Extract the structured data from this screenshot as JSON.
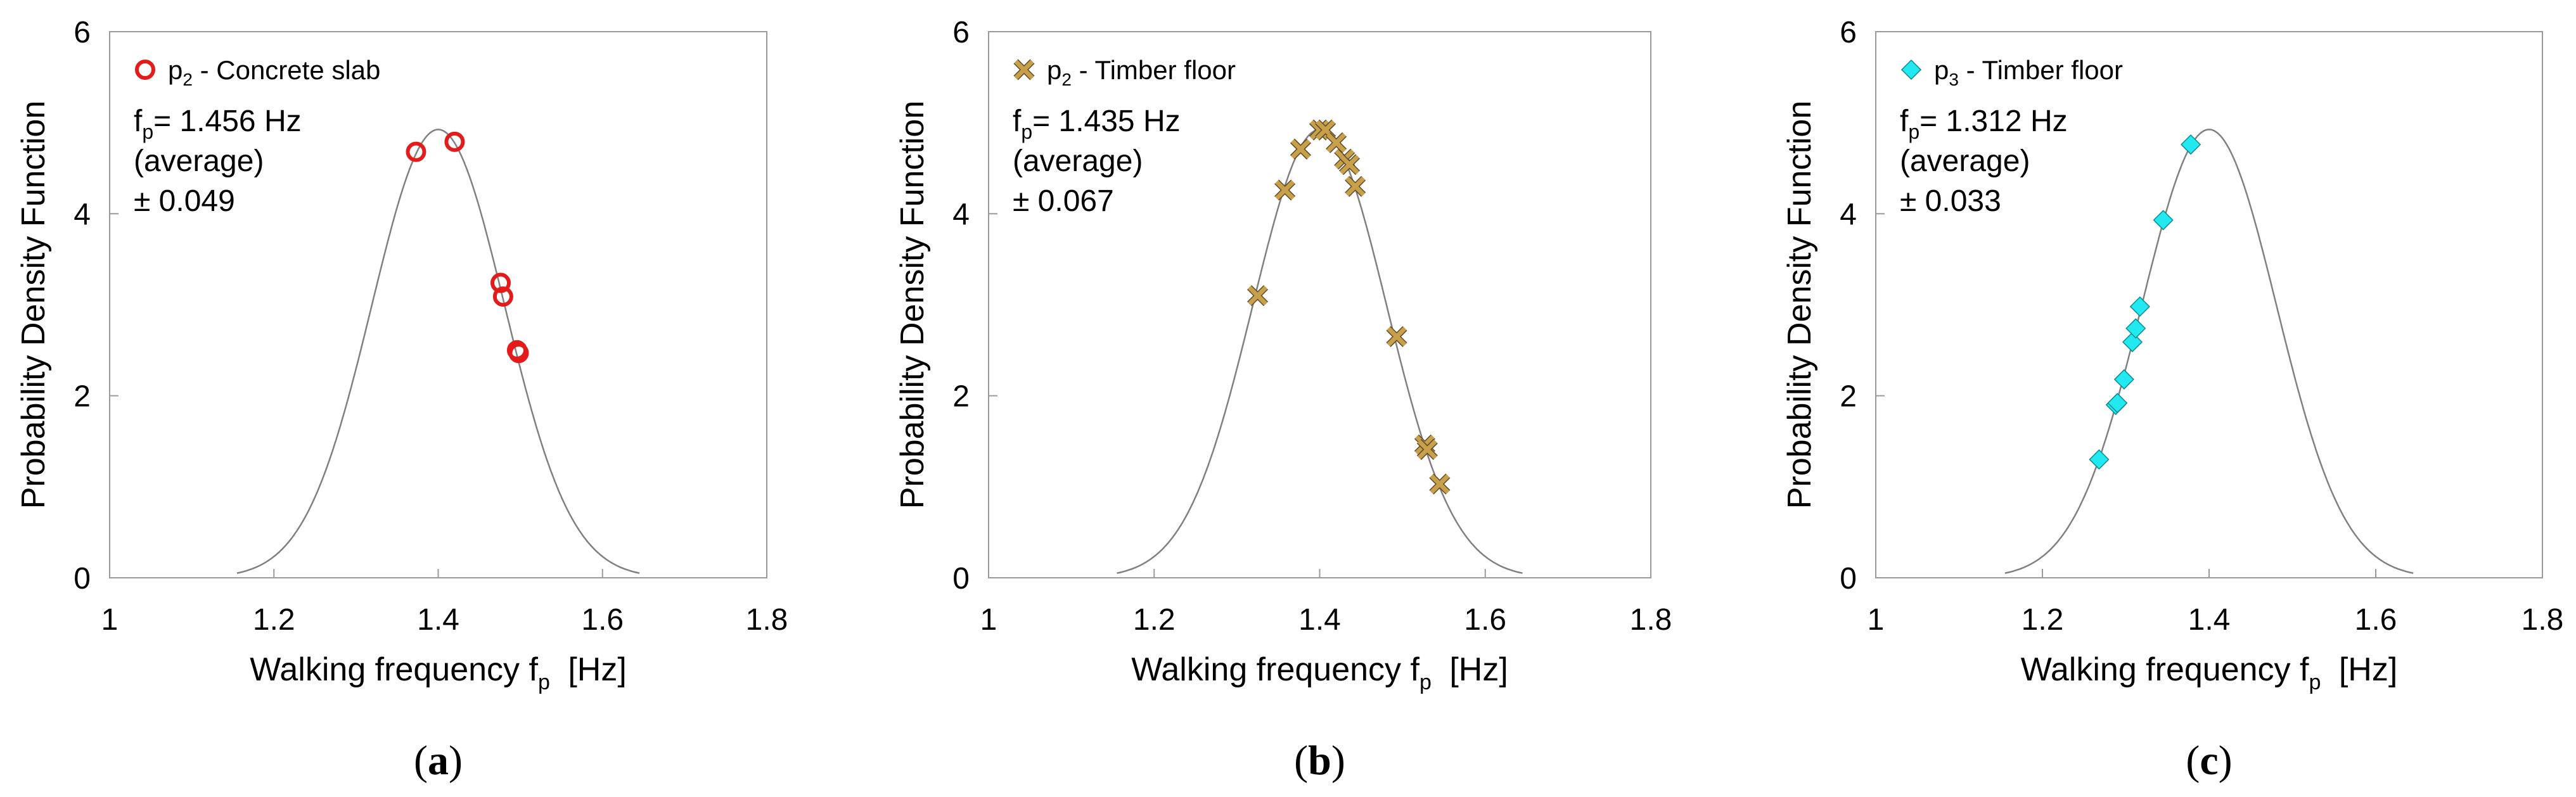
{
  "chart_data": [
    {
      "type": "scatter",
      "panel_label": "(a)",
      "panel_letter": "a",
      "xlabel": "Walking frequency f",
      "xlabel_sub": "p",
      "xlabel_unit": "[Hz]",
      "ylabel": "Probability Density Function",
      "xlim": [
        1.0,
        1.8
      ],
      "ylim": [
        0,
        6
      ],
      "xticks": [
        1.0,
        1.2,
        1.4,
        1.6,
        1.8
      ],
      "xtick_labels": [
        "1",
        "1.2",
        "1.4",
        "1.6",
        "1.8"
      ],
      "yticks": [
        0,
        2,
        4,
        6
      ],
      "ytick_labels": [
        "0",
        "2",
        "4",
        "6"
      ],
      "legend": {
        "name": "p",
        "sub": "2",
        "text": " - Concrete slab",
        "marker": "circle",
        "color": "#e31b1b",
        "placement": "top-left"
      },
      "annotation": {
        "main": "f",
        "sub": "p",
        "value": "= 1.456 Hz",
        "line2": "(average)",
        "line3": "± 0.049"
      },
      "curve": {
        "mean": 1.4,
        "std": 0.081,
        "x_range": [
          1.155,
          1.645
        ],
        "color": "#808080"
      },
      "series": [
        {
          "name": "p2 - Concrete slab",
          "x": [
            1.373,
            1.42,
            1.476,
            1.479,
            1.496,
            1.498
          ],
          "y": [
            4.68,
            4.79,
            3.24,
            3.09,
            2.5,
            2.47
          ]
        }
      ]
    },
    {
      "type": "scatter",
      "panel_label": "(b)",
      "panel_letter": "b",
      "xlabel": "Walking frequency f",
      "xlabel_sub": "p",
      "xlabel_unit": "[Hz]",
      "ylabel": "Probability Density Function",
      "xlim": [
        1.0,
        1.8
      ],
      "ylim": [
        0,
        6
      ],
      "xticks": [
        1.0,
        1.2,
        1.4,
        1.6,
        1.8
      ],
      "xtick_labels": [
        "1",
        "1.2",
        "1.4",
        "1.6",
        "1.8"
      ],
      "yticks": [
        0,
        2,
        4,
        6
      ],
      "ytick_labels": [
        "0",
        "2",
        "4",
        "6"
      ],
      "legend": {
        "name": "p",
        "sub": "2",
        "text": " - Timber floor",
        "marker": "x",
        "color": "#c9a04a",
        "placement": "top-left"
      },
      "annotation": {
        "main": "f",
        "sub": "p",
        "value": "= 1.435 Hz",
        "line2": "(average)",
        "line3": "± 0.067"
      },
      "curve": {
        "mean": 1.4,
        "std": 0.081,
        "x_range": [
          1.155,
          1.645
        ],
        "color": "#808080"
      },
      "series": [
        {
          "name": "p2 - Timber floor",
          "x": [
            1.325,
            1.358,
            1.377,
            1.4,
            1.407,
            1.42,
            1.43,
            1.436,
            1.443,
            1.493,
            1.527,
            1.53,
            1.545
          ],
          "y": [
            3.1,
            4.26,
            4.71,
            4.92,
            4.92,
            4.78,
            4.6,
            4.54,
            4.3,
            2.65,
            1.46,
            1.41,
            1.03
          ]
        }
      ]
    },
    {
      "type": "scatter",
      "panel_label": "(c)",
      "panel_letter": "c",
      "xlabel": "Walking frequency f",
      "xlabel_sub": "p",
      "xlabel_unit": "[Hz]",
      "ylabel": "Probability Density Function",
      "xlim": [
        1.0,
        1.8
      ],
      "ylim": [
        0,
        6
      ],
      "xticks": [
        1.0,
        1.2,
        1.4,
        1.6,
        1.8
      ],
      "xtick_labels": [
        "1",
        "1.2",
        "1.4",
        "1.6",
        "1.8"
      ],
      "yticks": [
        0,
        2,
        4,
        6
      ],
      "ytick_labels": [
        "0",
        "2",
        "4",
        "6"
      ],
      "legend": {
        "name": "p",
        "sub": "3",
        "text": " - Timber floor",
        "marker": "diamond",
        "color": "#22e8f0",
        "placement": "top-left"
      },
      "annotation": {
        "main": "f",
        "sub": "p",
        "value": "= 1.312 Hz",
        "line2": "(average)",
        "line3": "± 0.033"
      },
      "curve": {
        "mean": 1.4,
        "std": 0.081,
        "x_range": [
          1.155,
          1.645
        ],
        "color": "#808080"
      },
      "series": [
        {
          "name": "p3 - Timber floor",
          "x": [
            1.268,
            1.288,
            1.29,
            1.298,
            1.308,
            1.312,
            1.317,
            1.345,
            1.378
          ],
          "y": [
            1.3,
            1.9,
            1.92,
            2.18,
            2.59,
            2.74,
            2.98,
            3.93,
            4.76
          ]
        }
      ]
    }
  ]
}
